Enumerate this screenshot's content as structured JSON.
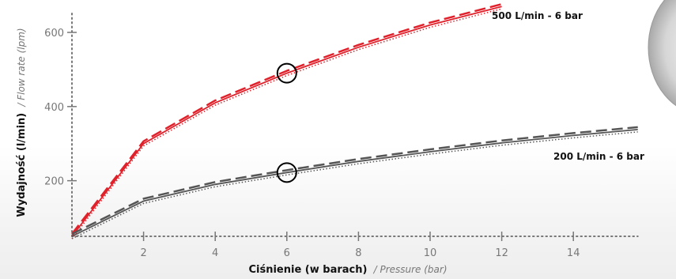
{
  "chart_data": {
    "type": "line",
    "title": "",
    "xlabel": {
      "bold": "Ciśnienie (w barach)",
      "italic": "/ Pressure (bar)"
    },
    "ylabel": {
      "bold": "Wydajność (l/min)",
      "italic": "/ Flow rate (lpm)"
    },
    "xlim": [
      0,
      15.8
    ],
    "ylim": [
      50,
      660
    ],
    "x_ticks": [
      2,
      4,
      6,
      8,
      10,
      12,
      14
    ],
    "y_ticks": [
      200,
      400,
      600
    ],
    "grid": false,
    "colors": {
      "red_series": "#e0202a",
      "dark_series": "#555555",
      "axis": "#777777",
      "marker": "#000000"
    },
    "series": [
      {
        "label": "500 L/min - 6 bar",
        "color": "#e0202a",
        "x": [
          0,
          2,
          4,
          6,
          8,
          10,
          12
        ],
        "y": [
          50,
          300,
          410,
          490,
          560,
          620,
          670
        ]
      },
      {
        "label": "200 L/min - 6 bar",
        "color": "#555555",
        "x": [
          0,
          2,
          4,
          6,
          8,
          10,
          12,
          14,
          15.8
        ],
        "y": [
          50,
          145,
          190,
          222,
          252,
          278,
          302,
          322,
          338
        ]
      }
    ],
    "markers": [
      {
        "type": "circle",
        "x": 6,
        "y": 490
      },
      {
        "type": "circle",
        "x": 6,
        "y": 222
      }
    ]
  }
}
